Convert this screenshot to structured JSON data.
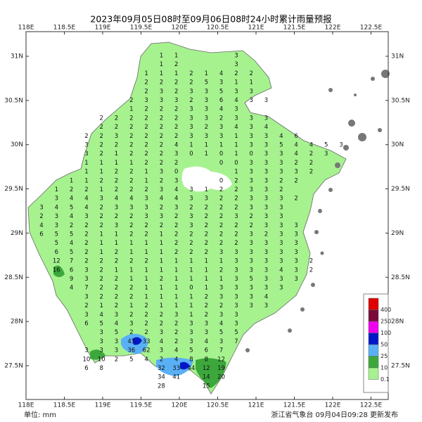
{
  "header": {
    "title": "2023年09月05日08时至09月06日08时24小时累计雨量预报"
  },
  "footer": {
    "unit": "单位: mm",
    "issuer": "浙江省气象台 09月04日09:28 更新发布"
  },
  "lon_ticks": [
    {
      "value": 118,
      "label": "118E"
    },
    {
      "value": 118.5,
      "label": "118.5E"
    },
    {
      "value": 119,
      "label": "119E"
    },
    {
      "value": 119.5,
      "label": "119.5E"
    },
    {
      "value": 120,
      "label": "120E"
    },
    {
      "value": 120.5,
      "label": "120.5E"
    },
    {
      "value": 121,
      "label": "121E"
    },
    {
      "value": 121.5,
      "label": "121.5E"
    },
    {
      "value": 122,
      "label": "122E"
    },
    {
      "value": 122.5,
      "label": "122.5E"
    }
  ],
  "lat_ticks": [
    {
      "value": 31,
      "label": "31N"
    },
    {
      "value": 30.5,
      "label": "30.5N"
    },
    {
      "value": 30,
      "label": "30N"
    },
    {
      "value": 29.5,
      "label": "29.5N"
    },
    {
      "value": 29,
      "label": "29N"
    },
    {
      "value": 28.5,
      "label": "28.5N"
    },
    {
      "value": 28,
      "label": "28N"
    },
    {
      "value": 27.5,
      "label": "27.5N"
    }
  ],
  "legend": {
    "levels": [
      {
        "label": "400",
        "color": "#e00000"
      },
      {
        "label": "250",
        "color": "#7a0a3a"
      },
      {
        "label": "100",
        "color": "#f000f0"
      },
      {
        "label": "50",
        "color": "#0018c8"
      },
      {
        "label": "25",
        "color": "#5ab0f5"
      },
      {
        "label": "10",
        "color": "#3ca83c"
      },
      {
        "label": "0.1",
        "color": "#a6f28f"
      }
    ]
  },
  "grid": {
    "rows": [
      [
        null,
        null,
        null,
        null,
        null,
        null,
        null,
        null,
        1,
        1,
        null,
        null,
        null,
        3
      ],
      [
        null,
        null,
        null,
        null,
        null,
        null,
        null,
        null,
        1,
        2,
        null,
        null,
        null,
        3
      ],
      [
        null,
        null,
        null,
        null,
        null,
        null,
        null,
        1,
        1,
        1,
        2,
        1,
        4,
        2,
        2
      ],
      [
        null,
        null,
        null,
        null,
        null,
        null,
        null,
        2,
        2,
        2,
        2,
        5,
        3,
        1,
        1
      ],
      [
        null,
        null,
        null,
        null,
        null,
        null,
        null,
        2,
        3,
        2,
        3,
        3,
        5,
        3,
        3
      ],
      [
        null,
        null,
        null,
        null,
        null,
        null,
        2,
        3,
        3,
        3,
        2,
        3,
        6,
        4,
        3,
        3
      ],
      [
        null,
        null,
        null,
        null,
        null,
        null,
        1,
        2,
        2,
        2,
        3,
        3,
        4,
        3
      ],
      [
        null,
        null,
        null,
        null,
        2,
        2,
        2,
        2,
        2,
        2,
        3,
        3,
        2,
        3,
        3,
        3
      ],
      [
        null,
        null,
        null,
        null,
        2,
        2,
        2,
        2,
        2,
        2,
        3,
        2,
        3,
        4,
        3,
        4
      ],
      [
        null,
        null,
        null,
        2,
        2,
        3,
        2,
        2,
        2,
        2,
        3,
        3,
        3,
        1,
        3,
        3,
        4,
        6
      ],
      [
        null,
        null,
        null,
        3,
        2,
        2,
        2,
        2,
        2,
        4,
        1,
        1,
        1,
        1,
        3,
        3,
        5,
        4,
        4,
        5,
        3
      ],
      [
        null,
        null,
        null,
        3,
        2,
        1,
        2,
        2,
        2,
        3,
        0,
        1,
        0,
        1,
        0,
        3,
        3,
        4,
        2,
        3
      ],
      [
        null,
        null,
        null,
        1,
        1,
        1,
        1,
        2,
        2,
        2,
        null,
        null,
        0,
        0,
        3,
        3,
        3,
        2,
        2
      ],
      [
        null,
        null,
        null,
        1,
        1,
        2,
        2,
        1,
        3,
        0,
        null,
        null,
        null,
        1,
        3,
        3,
        3,
        3,
        2
      ],
      [
        null,
        null,
        1,
        1,
        2,
        2,
        2,
        1,
        2,
        3,
        null,
        null,
        0,
        2,
        3,
        3,
        2,
        2
      ],
      [
        null,
        1,
        2,
        2,
        1,
        2,
        2,
        2,
        3,
        4,
        3,
        1,
        2,
        2,
        3,
        3,
        2
      ],
      [
        null,
        3,
        4,
        4,
        3,
        4,
        4,
        3,
        4,
        4,
        3,
        3,
        2,
        2,
        3,
        3,
        3,
        2
      ],
      [
        3,
        4,
        5,
        4,
        2,
        3,
        3,
        3,
        2,
        3,
        2,
        2,
        2,
        2,
        3,
        3,
        3
      ],
      [
        2,
        3,
        4,
        3,
        2,
        2,
        2,
        3,
        3,
        2,
        3,
        2,
        2,
        3,
        2,
        3,
        3
      ],
      [
        4,
        3,
        2,
        2,
        2,
        3,
        2,
        2,
        2,
        2,
        3,
        2,
        2,
        2,
        2,
        3,
        3,
        3
      ],
      [
        6,
        5,
        5,
        2,
        1,
        1,
        2,
        2,
        1,
        2,
        2,
        2,
        2,
        2,
        3,
        2,
        3,
        3
      ],
      [
        null,
        5,
        4,
        2,
        1,
        1,
        1,
        1,
        1,
        2,
        2,
        2,
        2,
        2,
        3,
        3,
        3,
        3
      ],
      [
        null,
        6,
        5,
        2,
        1,
        2,
        1,
        1,
        1,
        2,
        2,
        2,
        3,
        3,
        3,
        3,
        3,
        3
      ],
      [
        null,
        12,
        7,
        2,
        2,
        2,
        2,
        2,
        1,
        1,
        1,
        1,
        1,
        3,
        3,
        3,
        3,
        3,
        2
      ],
      [
        null,
        16,
        6,
        3,
        2,
        1,
        1,
        1,
        1,
        1,
        1,
        1,
        2,
        3,
        3,
        3,
        4,
        3,
        2
      ],
      [
        null,
        null,
        9,
        3,
        2,
        2,
        1,
        1,
        2,
        1,
        1,
        1,
        1,
        3,
        5,
        3,
        3,
        3
      ],
      [
        null,
        null,
        4,
        7,
        2,
        2,
        2,
        1,
        1,
        1,
        0,
        1,
        3,
        3,
        3,
        3,
        3
      ],
      [
        null,
        null,
        null,
        3,
        2,
        2,
        2,
        1,
        1,
        1,
        1,
        2,
        3,
        3,
        3,
        4
      ],
      [
        null,
        null,
        null,
        2,
        1,
        2,
        1,
        2,
        1,
        1,
        1,
        2,
        2,
        3,
        3,
        3
      ],
      [
        null,
        null,
        null,
        3,
        4,
        3,
        2,
        2,
        2,
        3,
        1,
        2,
        3,
        3
      ],
      [
        null,
        null,
        null,
        6,
        5,
        4,
        3,
        2,
        2,
        2,
        3,
        3,
        4,
        3
      ],
      [
        null,
        null,
        null,
        null,
        3,
        5,
        2,
        2,
        3,
        2,
        3,
        3,
        5,
        5
      ],
      [
        null,
        null,
        null,
        null,
        3,
        3,
        43,
        33,
        4,
        2,
        3,
        4,
        3,
        7
      ],
      [
        null,
        null,
        null,
        3,
        3,
        3,
        36,
        62,
        3,
        4,
        5,
        6,
        7
      ],
      [
        null,
        null,
        null,
        10,
        10,
        2,
        5,
        4,
        2,
        4,
        8,
        8,
        12
      ],
      [
        null,
        null,
        null,
        6,
        8,
        null,
        null,
        null,
        32,
        33,
        44,
        12,
        19
      ],
      [
        null,
        null,
        null,
        null,
        null,
        null,
        null,
        null,
        34,
        41,
        null,
        14,
        20
      ],
      [
        null,
        null,
        null,
        null,
        null,
        null,
        null,
        null,
        28,
        null,
        null,
        15
      ]
    ]
  }
}
